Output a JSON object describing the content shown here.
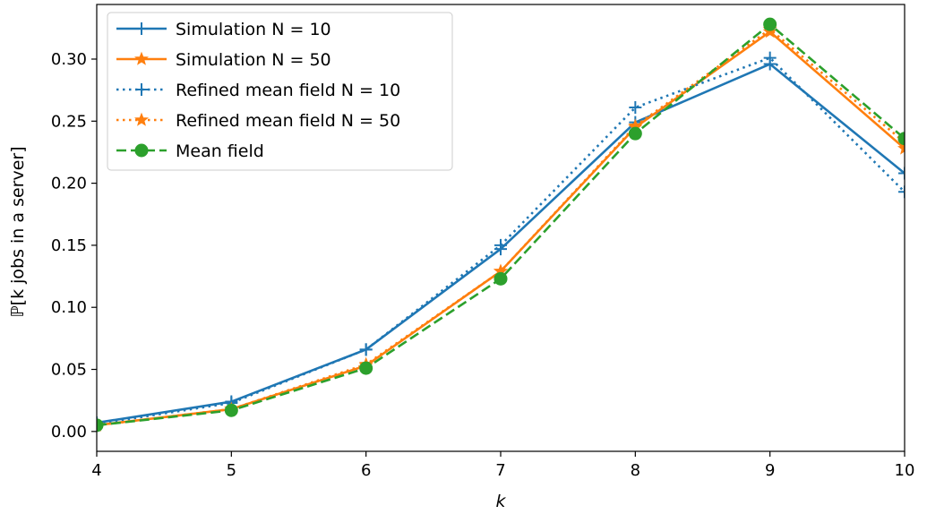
{
  "chart_data": {
    "type": "line",
    "title": "",
    "xlabel": "k",
    "ylabel": "ℙ[k jobs in a server]",
    "x": [
      4,
      5,
      6,
      7,
      8,
      9,
      10
    ],
    "xlim": [
      4,
      10
    ],
    "ylim": [
      -0.016,
      0.344
    ],
    "xticks": [
      "4",
      "5",
      "6",
      "7",
      "8",
      "9",
      "10"
    ],
    "yticks": [
      "0.00",
      "0.05",
      "0.10",
      "0.15",
      "0.20",
      "0.25",
      "0.30"
    ],
    "ytick_values": [
      0,
      0.05,
      0.1,
      0.15,
      0.2,
      0.25,
      0.3
    ],
    "grid": false,
    "legend_position": "top-left",
    "series": [
      {
        "name": "Simulation N = 10",
        "color": "#1f77b4",
        "linestyle": "solid",
        "marker": "plus",
        "values": [
          0.007,
          0.024,
          0.066,
          0.147,
          0.249,
          0.296,
          0.208
        ]
      },
      {
        "name": "Simulation N = 50",
        "color": "#ff7f0e",
        "linestyle": "solid",
        "marker": "star",
        "values": [
          0.005,
          0.018,
          0.053,
          0.129,
          0.245,
          0.322,
          0.228
        ]
      },
      {
        "name": "Refined mean field N = 10",
        "color": "#1f77b4",
        "linestyle": "dotted",
        "marker": "plus",
        "values": [
          0.006,
          0.023,
          0.066,
          0.15,
          0.261,
          0.301,
          0.193
        ]
      },
      {
        "name": "Refined mean field N = 50",
        "color": "#ff7f0e",
        "linestyle": "dotted",
        "marker": "star",
        "values": [
          0.005,
          0.018,
          0.054,
          0.129,
          0.246,
          0.324,
          0.233
        ]
      },
      {
        "name": "Mean field",
        "color": "#2ca02c",
        "linestyle": "dashed",
        "marker": "circle",
        "values": [
          0.005,
          0.017,
          0.051,
          0.123,
          0.24,
          0.328,
          0.236
        ]
      }
    ]
  }
}
